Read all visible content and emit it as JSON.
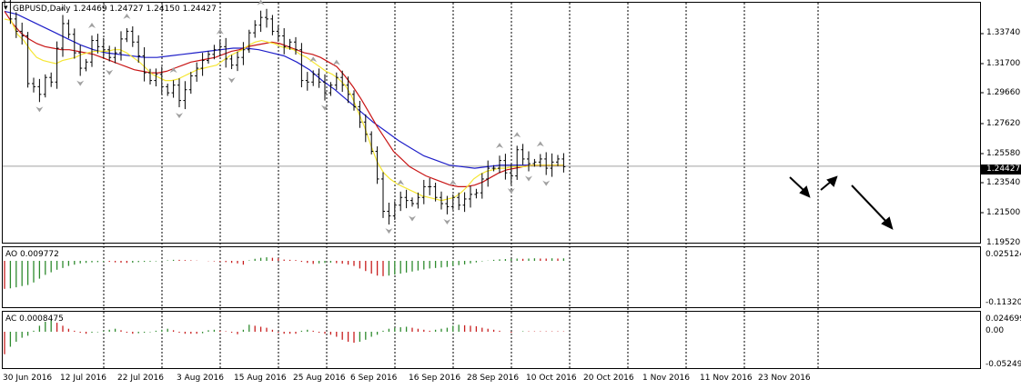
{
  "header": {
    "symbol": "GBPUSD,Daily",
    "open": "1.24469",
    "high": "1.24727",
    "low": "1.24150",
    "close": "1.24427"
  },
  "price_axis": {
    "ticks": [
      "1.33740",
      "1.31700",
      "1.29660",
      "1.27620",
      "1.25580",
      "1.23540",
      "1.21500",
      "1.19520"
    ],
    "current_price": "1.24427"
  },
  "ao_panel": {
    "label": "AO 0.009772",
    "ticks": [
      "0.025124",
      "-0.113209"
    ]
  },
  "ac_panel": {
    "label": "AC 0.0008475",
    "ticks": [
      "0.024699",
      "0.00",
      "-0.05249"
    ]
  },
  "time_axis": {
    "labels": [
      "30 Jun 2016",
      "12 Jul 2016",
      "22 Jul 2016",
      "3 Aug 2016",
      "15 Aug 2016",
      "25 Aug 2016",
      "6 Sep 2016",
      "16 Sep 2016",
      "28 Sep 2016",
      "10 Oct 2016",
      "20 Oct 2016",
      "1 Nov 2016",
      "11 Nov 2016",
      "23 Nov 2016"
    ]
  },
  "colors": {
    "bars": "#000000",
    "ma_yellow": "#f5e632",
    "ma_red": "#c81414",
    "ma_blue": "#1e1ec8",
    "ao_up": "#2e8b2e",
    "ao_down": "#c81e1e",
    "price_line": "#a0a0a0",
    "current_price_bg": "#000000",
    "grid": "#000000",
    "fractal": "#a0a0a0"
  },
  "chart_data": {
    "type": "ohlc",
    "ylim": [
      1.1952,
      1.3476
    ],
    "closes": [
      1.351,
      1.34,
      1.332,
      1.329,
      1.298,
      1.296,
      1.291,
      1.302,
      1.299,
      1.321,
      1.337,
      1.33,
      1.318,
      1.308,
      1.312,
      1.326,
      1.322,
      1.32,
      1.315,
      1.318,
      1.327,
      1.332,
      1.325,
      1.316,
      1.305,
      1.3,
      1.304,
      1.296,
      1.292,
      1.297,
      1.287,
      1.294,
      1.303,
      1.308,
      1.313,
      1.317,
      1.32,
      1.322,
      1.314,
      1.31,
      1.315,
      1.32,
      1.331,
      1.336,
      1.341,
      1.34,
      1.332,
      1.329,
      1.322,
      1.325,
      1.32,
      1.3,
      1.299,
      1.304,
      1.299,
      1.292,
      1.297,
      1.302,
      1.297,
      1.291,
      1.283,
      1.273,
      1.265,
      1.254,
      1.236,
      1.215,
      1.212,
      1.219,
      1.224,
      1.222,
      1.22,
      1.224,
      1.231,
      1.231,
      1.224,
      1.22,
      1.218,
      1.224,
      1.219,
      1.223,
      1.226,
      1.227,
      1.236,
      1.243,
      1.243,
      1.248,
      1.24,
      1.238,
      1.255,
      1.249,
      1.246,
      1.247,
      1.249,
      1.243,
      1.247,
      1.249,
      1.244
    ],
    "ma_yellow": [
      1.34,
      1.339,
      1.33,
      1.326,
      1.32,
      1.315,
      1.313,
      1.312,
      1.311,
      1.313,
      1.314,
      1.315,
      1.317,
      1.318,
      1.319,
      1.319,
      1.319,
      1.32,
      1.32,
      1.318,
      1.315,
      1.312,
      1.308,
      1.304,
      1.302,
      1.3,
      1.3,
      1.301,
      1.303,
      1.305,
      1.307,
      1.308,
      1.309,
      1.31,
      1.313,
      1.316,
      1.318,
      1.32,
      1.323,
      1.325,
      1.326,
      1.325,
      1.324,
      1.322,
      1.321,
      1.32,
      1.317,
      1.315,
      1.312,
      1.309,
      1.306,
      1.304,
      1.301,
      1.297,
      1.29,
      1.28,
      1.27,
      1.258,
      1.247,
      1.24,
      1.236,
      1.233,
      1.231,
      1.229,
      1.227,
      1.225,
      1.224,
      1.223,
      1.222,
      1.223,
      1.224,
      1.227,
      1.231,
      1.236,
      1.239,
      1.241,
      1.242,
      1.243,
      1.243,
      1.244,
      1.244,
      1.244,
      1.245,
      1.245,
      1.245,
      1.245,
      1.245,
      1.245
    ],
    "ma_red": [
      1.345,
      1.337,
      1.331,
      1.327,
      1.324,
      1.322,
      1.321,
      1.32,
      1.32,
      1.319,
      1.318,
      1.317,
      1.315,
      1.313,
      1.311,
      1.309,
      1.307,
      1.306,
      1.305,
      1.305,
      1.306,
      1.308,
      1.31,
      1.312,
      1.313,
      1.314,
      1.315,
      1.317,
      1.319,
      1.32,
      1.322,
      1.323,
      1.324,
      1.325,
      1.324,
      1.322,
      1.32,
      1.318,
      1.317,
      1.315,
      1.312,
      1.309,
      1.303,
      1.296,
      1.288,
      1.279,
      1.27,
      1.262,
      1.254,
      1.249,
      1.244,
      1.241,
      1.238,
      1.236,
      1.234,
      1.232,
      1.231,
      1.231,
      1.232,
      1.234,
      1.237,
      1.24,
      1.242,
      1.243,
      1.244,
      1.245,
      1.245,
      1.245,
      1.245,
      1.245
    ],
    "ma_blue": [
      1.345,
      1.343,
      1.339,
      1.335,
      1.331,
      1.327,
      1.323,
      1.32,
      1.318,
      1.317,
      1.316,
      1.315,
      1.315,
      1.316,
      1.317,
      1.318,
      1.319,
      1.32,
      1.321,
      1.321,
      1.32,
      1.318,
      1.316,
      1.312,
      1.307,
      1.3,
      1.294,
      1.287,
      1.28,
      1.273,
      1.267,
      1.261,
      1.256,
      1.251,
      1.248,
      1.245,
      1.244,
      1.243,
      1.244,
      1.245,
      1.245,
      1.245,
      1.245,
      1.245,
      1.245
    ],
    "ao": [
      -0.11,
      -0.108,
      -0.104,
      -0.099,
      -0.095,
      -0.085,
      -0.07,
      -0.055,
      -0.045,
      -0.035,
      -0.028,
      -0.02,
      -0.015,
      -0.01,
      -0.008,
      -0.006,
      -0.005,
      -0.004,
      -0.004,
      -0.006,
      -0.007,
      -0.008,
      -0.007,
      -0.005,
      -0.004,
      -0.003,
      -0.002,
      -0.001,
      0.002,
      0.004,
      0.004,
      0.003,
      0.002,
      0.001,
      0.0,
      -0.001,
      -0.002,
      -0.004,
      -0.005,
      -0.008,
      -0.01,
      -0.015,
      0.002,
      0.008,
      0.012,
      0.014,
      0.012,
      0.01,
      0.005,
      0.004,
      0.003,
      -0.004,
      -0.008,
      -0.012,
      -0.01,
      -0.008,
      -0.007,
      -0.009,
      -0.011,
      -0.015,
      -0.02,
      -0.03,
      -0.04,
      -0.05,
      -0.058,
      -0.06,
      -0.058,
      -0.054,
      -0.05,
      -0.046,
      -0.042,
      -0.038,
      -0.034,
      -0.03,
      -0.028,
      -0.026,
      -0.024,
      -0.02,
      -0.017,
      -0.014,
      -0.01,
      -0.006,
      -0.002,
      0.001,
      0.004,
      0.006,
      0.007,
      0.008,
      0.009,
      0.008,
      0.009,
      0.01,
      0.009,
      0.009,
      0.01,
      0.009,
      0.0098
    ],
    "ac": [
      -0.045,
      -0.03,
      -0.02,
      -0.012,
      -0.008,
      0.002,
      0.012,
      0.02,
      0.024,
      0.018,
      0.012,
      0.006,
      0.002,
      -0.002,
      -0.004,
      -0.002,
      -0.001,
      0.002,
      0.004,
      0.006,
      0.003,
      -0.002,
      -0.004,
      -0.003,
      -0.002,
      -0.001,
      0.002,
      0.004,
      0.006,
      0.003,
      -0.002,
      -0.004,
      -0.004,
      -0.004,
      -0.003,
      0.003,
      0.004,
      0.002,
      0.001,
      -0.002,
      -0.005,
      0.004,
      0.014,
      0.012,
      0.01,
      0.008,
      0.004,
      -0.002,
      -0.004,
      -0.004,
      -0.004,
      0.002,
      0.004,
      0.002,
      -0.002,
      -0.004,
      -0.006,
      -0.01,
      -0.016,
      -0.02,
      -0.022,
      -0.02,
      -0.016,
      -0.01,
      -0.006,
      0.002,
      0.006,
      0.008,
      0.009,
      0.01,
      0.008,
      0.006,
      0.004,
      0.002,
      0.004,
      0.006,
      0.008,
      0.012,
      0.014,
      0.013,
      0.012,
      0.011,
      0.008,
      0.006,
      0.004,
      0.002,
      0.0,
      -0.002,
      0.0,
      0.001,
      0.0008,
      0.0008,
      0.0008,
      0.0008,
      0.0008,
      0.0008,
      0.0008
    ]
  }
}
